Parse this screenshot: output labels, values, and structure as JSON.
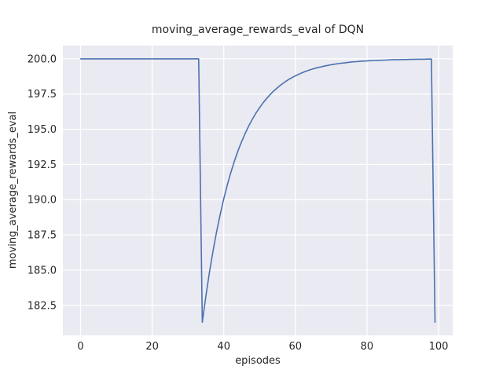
{
  "figure": {
    "background": "#ffffff",
    "text_color": "#262626"
  },
  "chart_data": {
    "type": "line",
    "title": "moving_average_rewards_eval of DQN",
    "xlabel": "episodes",
    "ylabel": "moving_average_rewards_eval",
    "legend": "none",
    "grid": true,
    "style": "seaborn-darkgrid",
    "plot_bg": "#eaeaf2",
    "grid_color": "#ffffff",
    "line_color": "#4c72b0",
    "xlim": [
      -4.95,
      103.95
    ],
    "ylim": [
      180.37,
      200.94
    ],
    "xticks": [
      0,
      20,
      40,
      60,
      80,
      100
    ],
    "xtick_labels": [
      "0",
      "20",
      "40",
      "60",
      "80",
      "100"
    ],
    "yticks": [
      182.5,
      185.0,
      187.5,
      190.0,
      192.5,
      195.0,
      197.5,
      200.0
    ],
    "ytick_labels": [
      "182.5",
      "185.0",
      "187.5",
      "190.0",
      "192.5",
      "195.0",
      "197.5",
      "200.0"
    ],
    "x": [
      0,
      1,
      2,
      3,
      4,
      5,
      6,
      7,
      8,
      9,
      10,
      11,
      12,
      13,
      14,
      15,
      16,
      17,
      18,
      19,
      20,
      21,
      22,
      23,
      24,
      25,
      26,
      27,
      28,
      29,
      30,
      31,
      32,
      33,
      34,
      35,
      36,
      37,
      38,
      39,
      40,
      41,
      42,
      43,
      44,
      45,
      46,
      47,
      48,
      49,
      50,
      51,
      52,
      53,
      54,
      55,
      56,
      57,
      58,
      59,
      60,
      61,
      62,
      63,
      64,
      65,
      66,
      67,
      68,
      69,
      70,
      71,
      72,
      73,
      74,
      75,
      76,
      77,
      78,
      79,
      80,
      81,
      82,
      83,
      84,
      85,
      86,
      87,
      88,
      89,
      90,
      91,
      92,
      93,
      94,
      95,
      96,
      97,
      98,
      99
    ],
    "y": [
      200,
      200,
      200,
      200,
      200,
      200,
      200,
      200,
      200,
      200,
      200,
      200,
      200,
      200,
      200,
      200,
      200,
      200,
      200,
      200,
      200,
      200,
      200,
      200,
      200,
      200,
      200,
      200,
      200,
      200,
      200,
      200,
      200,
      200,
      181.3,
      183.17,
      184.85,
      186.37,
      187.73,
      188.96,
      190.06,
      191.06,
      191.95,
      192.76,
      193.48,
      194.13,
      194.72,
      195.25,
      195.72,
      196.15,
      196.53,
      196.88,
      197.19,
      197.47,
      197.73,
      197.95,
      198.16,
      198.34,
      198.51,
      198.66,
      198.79,
      198.91,
      199.02,
      199.12,
      199.21,
      199.29,
      199.36,
      199.42,
      199.48,
      199.53,
      199.58,
      199.62,
      199.66,
      199.69,
      199.72,
      199.75,
      199.78,
      199.8,
      199.82,
      199.84,
      199.85,
      199.87,
      199.88,
      199.89,
      199.9,
      199.91,
      199.92,
      199.93,
      199.94,
      199.94,
      199.95,
      199.95,
      199.96,
      199.96,
      199.97,
      199.97,
      199.97,
      199.98,
      199.98,
      181.3
    ]
  }
}
